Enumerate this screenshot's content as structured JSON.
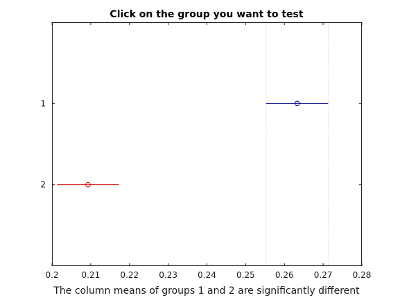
{
  "window": {
    "title": "Click on the group you want to test",
    "status_message": "The column means of groups 1 and 2 are significantly different"
  },
  "chart_data": {
    "type": "scatter",
    "title": "Click on the group you want to test",
    "xlabel": "The column means of groups 1 and 2 are significantly different",
    "ylabel": "",
    "xlim": [
      0.2,
      0.28
    ],
    "xticks": [
      0.2,
      0.21,
      0.22,
      0.23,
      0.24,
      0.25,
      0.26,
      0.27,
      0.28
    ],
    "xtick_labels": [
      "0.2",
      "0.21",
      "0.22",
      "0.23",
      "0.24",
      "0.25",
      "0.26",
      "0.27",
      "0.28"
    ],
    "groups": [
      "1",
      "2"
    ],
    "series": [
      {
        "group": "1",
        "mean": 0.2633,
        "interval": [
          0.2553,
          0.2713
        ],
        "color": "#00008b"
      },
      {
        "group": "2",
        "mean": 0.2093,
        "interval": [
          0.2013,
          0.2173
        ],
        "color": "#cc0000"
      }
    ],
    "selected_group": "1",
    "reference_lines": [
      0.2553,
      0.2713
    ],
    "reference_line_color": "#cfcfcf",
    "grid": false,
    "legend": "none"
  }
}
